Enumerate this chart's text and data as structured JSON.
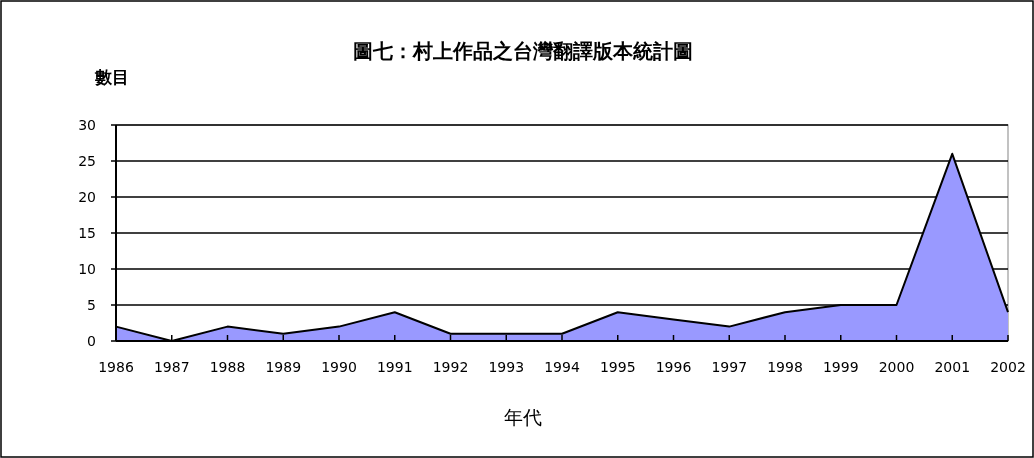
{
  "chart_data": {
    "type": "area",
    "title": "圖七：村上作品之台灣翻譯版本統計圖",
    "xlabel": "年代",
    "ylabel": "數目",
    "categories": [
      "1986",
      "1987",
      "1988",
      "1989",
      "1990",
      "1991",
      "1992",
      "1993",
      "1994",
      "1995",
      "1996",
      "1997",
      "1998",
      "1999",
      "2000",
      "2001",
      "2002"
    ],
    "values": [
      2,
      0,
      2,
      1,
      2,
      4,
      1,
      1,
      1,
      4,
      3,
      2,
      4,
      5,
      5,
      26,
      4
    ],
    "color": "#9999ff",
    "ylim": [
      0,
      30
    ],
    "yticks": [
      0,
      5,
      10,
      15,
      20,
      25,
      30
    ],
    "grid": "y"
  }
}
